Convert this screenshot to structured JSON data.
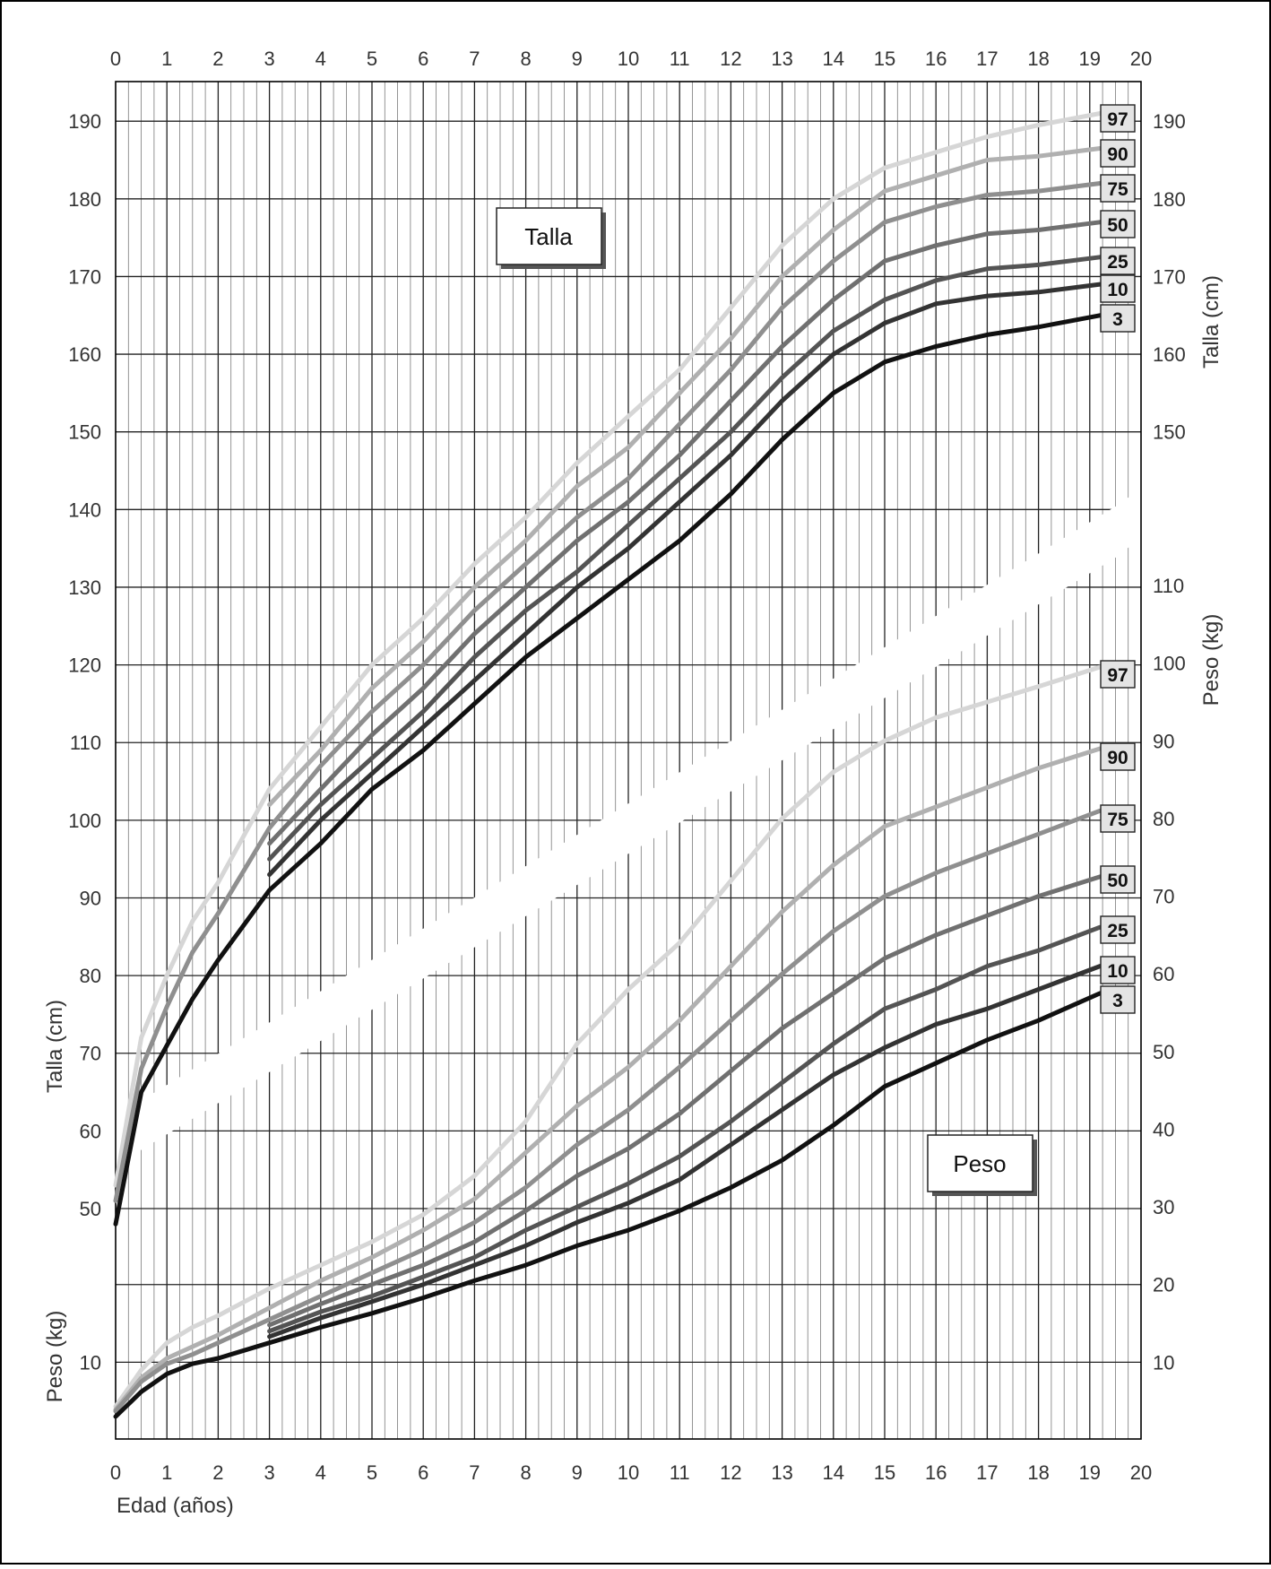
{
  "chart_data": {
    "type": "line",
    "x_label": "Edad (años)",
    "x_range": [
      0,
      20
    ],
    "x_ticks": [
      0,
      1,
      2,
      3,
      4,
      5,
      6,
      7,
      8,
      9,
      10,
      11,
      12,
      13,
      14,
      15,
      16,
      17,
      18,
      19,
      20
    ],
    "talla": {
      "panel_label": "Talla",
      "axis_label": "Talla (cm)",
      "left_ticks": [
        50,
        60,
        70,
        80,
        90,
        100,
        110,
        120,
        130,
        140,
        150,
        160,
        170,
        180,
        190
      ],
      "right_ticks": [
        150,
        160,
        170,
        180,
        190
      ],
      "series": [
        {
          "percentile": "97",
          "points": [
            [
              0,
              53
            ],
            [
              0.5,
              72
            ],
            [
              1,
              80
            ],
            [
              1.5,
              87
            ],
            [
              2,
              92
            ],
            [
              3,
              104
            ],
            [
              4,
              112
            ],
            [
              5,
              120
            ],
            [
              6,
              126
            ],
            [
              7,
              133
            ],
            [
              8,
              139
            ],
            [
              9,
              146
            ],
            [
              10,
              152
            ],
            [
              11,
              158
            ],
            [
              12,
              166
            ],
            [
              13,
              174
            ],
            [
              14,
              180
            ],
            [
              15,
              184
            ],
            [
              16,
              186
            ],
            [
              17,
              188
            ],
            [
              18,
              189.5
            ],
            [
              19.2,
              191
            ]
          ]
        },
        {
          "percentile": "90",
          "points": [
            [
              3,
              102
            ],
            [
              4,
              109
            ],
            [
              5,
              117
            ],
            [
              6,
              123
            ],
            [
              7,
              130
            ],
            [
              8,
              136
            ],
            [
              9,
              143
            ],
            [
              10,
              148
            ],
            [
              11,
              155
            ],
            [
              12,
              162
            ],
            [
              13,
              170
            ],
            [
              14,
              176
            ],
            [
              15,
              181
            ],
            [
              16,
              183
            ],
            [
              17,
              185
            ],
            [
              18,
              185.5
            ],
            [
              19.2,
              186.5
            ]
          ]
        },
        {
          "percentile": "75",
          "points": [
            [
              0,
              51
            ],
            [
              0.5,
              68
            ],
            [
              1,
              76
            ],
            [
              1.5,
              83
            ],
            [
              2,
              88
            ],
            [
              3,
              99
            ],
            [
              4,
              107
            ],
            [
              5,
              114
            ],
            [
              6,
              120
            ],
            [
              7,
              127
            ],
            [
              8,
              133
            ],
            [
              9,
              139
            ],
            [
              10,
              144
            ],
            [
              11,
              151
            ],
            [
              12,
              158
            ],
            [
              13,
              166
            ],
            [
              14,
              172
            ],
            [
              15,
              177
            ],
            [
              16,
              179
            ],
            [
              17,
              180.5
            ],
            [
              18,
              181
            ],
            [
              19.2,
              182
            ]
          ]
        },
        {
          "percentile": "50",
          "points": [
            [
              3,
              97
            ],
            [
              4,
              104
            ],
            [
              5,
              111
            ],
            [
              6,
              117
            ],
            [
              7,
              124
            ],
            [
              8,
              130
            ],
            [
              9,
              136
            ],
            [
              10,
              141
            ],
            [
              11,
              147
            ],
            [
              12,
              154
            ],
            [
              13,
              161
            ],
            [
              14,
              167
            ],
            [
              15,
              172
            ],
            [
              16,
              174
            ],
            [
              17,
              175.5
            ],
            [
              18,
              176
            ],
            [
              19.2,
              177
            ]
          ]
        },
        {
          "percentile": "25",
          "points": [
            [
              3,
              95
            ],
            [
              4,
              102
            ],
            [
              5,
              108
            ],
            [
              6,
              114
            ],
            [
              7,
              121
            ],
            [
              8,
              127
            ],
            [
              9,
              132
            ],
            [
              10,
              138
            ],
            [
              11,
              144
            ],
            [
              12,
              150
            ],
            [
              13,
              157
            ],
            [
              14,
              163
            ],
            [
              15,
              167
            ],
            [
              16,
              169.5
            ],
            [
              17,
              171
            ],
            [
              18,
              171.5
            ],
            [
              19.2,
              172.5
            ]
          ]
        },
        {
          "percentile": "10",
          "points": [
            [
              3,
              93
            ],
            [
              4,
              100
            ],
            [
              5,
              106
            ],
            [
              6,
              112
            ],
            [
              7,
              118
            ],
            [
              8,
              124
            ],
            [
              9,
              130
            ],
            [
              10,
              135
            ],
            [
              11,
              141
            ],
            [
              12,
              147
            ],
            [
              13,
              154
            ],
            [
              14,
              160
            ],
            [
              15,
              164
            ],
            [
              16,
              166.5
            ],
            [
              17,
              167.5
            ],
            [
              18,
              168
            ],
            [
              19.2,
              169
            ]
          ]
        },
        {
          "percentile": "3",
          "points": [
            [
              0,
              48
            ],
            [
              0.5,
              65
            ],
            [
              1,
              71
            ],
            [
              1.5,
              77
            ],
            [
              2,
              82
            ],
            [
              3,
              91
            ],
            [
              4,
              97
            ],
            [
              5,
              104
            ],
            [
              6,
              109
            ],
            [
              7,
              115
            ],
            [
              8,
              121
            ],
            [
              9,
              126
            ],
            [
              10,
              131
            ],
            [
              11,
              136
            ],
            [
              12,
              142
            ],
            [
              13,
              149
            ],
            [
              14,
              155
            ],
            [
              15,
              159
            ],
            [
              16,
              161
            ],
            [
              17,
              162.5
            ],
            [
              18,
              163.5
            ],
            [
              19.2,
              165
            ]
          ]
        }
      ]
    },
    "peso": {
      "panel_label": "Peso",
      "axis_label": "Peso (kg)",
      "left_ticks": [
        10
      ],
      "right_ticks": [
        10,
        20,
        30,
        40,
        50,
        60,
        70,
        80,
        90,
        100,
        110
      ],
      "series": [
        {
          "percentile": "97",
          "points": [
            [
              0,
              4.3
            ],
            [
              0.5,
              9
            ],
            [
              1,
              12.5
            ],
            [
              1.5,
              14.5
            ],
            [
              2,
              16
            ],
            [
              3,
              19.5
            ],
            [
              4,
              22.5
            ],
            [
              5,
              25.5
            ],
            [
              6,
              29
            ],
            [
              7,
              34
            ],
            [
              8,
              41
            ],
            [
              9,
              51
            ],
            [
              10,
              58
            ],
            [
              11,
              64
            ],
            [
              12,
              72
            ],
            [
              13,
              80
            ],
            [
              14,
              86
            ],
            [
              15,
              90
            ],
            [
              16,
              93
            ],
            [
              17,
              95
            ],
            [
              18,
              97
            ],
            [
              19.2,
              99.5
            ]
          ]
        },
        {
          "percentile": "90",
          "points": [
            [
              0,
              3.9
            ],
            [
              0.5,
              8
            ],
            [
              1,
              10.5
            ],
            [
              1.5,
              12
            ],
            [
              2,
              13.5
            ],
            [
              3,
              17
            ],
            [
              4,
              20.5
            ],
            [
              5,
              23.5
            ],
            [
              6,
              27
            ],
            [
              7,
              31
            ],
            [
              8,
              37
            ],
            [
              9,
              43
            ],
            [
              10,
              48
            ],
            [
              11,
              54
            ],
            [
              12,
              61
            ],
            [
              13,
              68
            ],
            [
              14,
              74
            ],
            [
              15,
              79
            ],
            [
              16,
              81.5
            ],
            [
              17,
              84
            ],
            [
              18,
              86.5
            ],
            [
              19.2,
              89
            ]
          ]
        },
        {
          "percentile": "75",
          "points": [
            [
              0,
              3.7
            ],
            [
              0.5,
              7.5
            ],
            [
              1,
              9.8
            ],
            [
              1.5,
              11
            ],
            [
              2,
              12.5
            ],
            [
              3,
              15.5
            ],
            [
              4,
              18.5
            ],
            [
              5,
              21.5
            ],
            [
              6,
              24.5
            ],
            [
              7,
              28
            ],
            [
              8,
              32.5
            ],
            [
              9,
              38
            ],
            [
              10,
              42.5
            ],
            [
              11,
              48
            ],
            [
              12,
              54
            ],
            [
              13,
              60
            ],
            [
              14,
              65.5
            ],
            [
              15,
              70
            ],
            [
              16,
              73
            ],
            [
              17,
              75.5
            ],
            [
              18,
              78
            ],
            [
              19.2,
              81
            ]
          ]
        },
        {
          "percentile": "50",
          "points": [
            [
              3,
              14.8
            ],
            [
              4,
              17.5
            ],
            [
              5,
              20
            ],
            [
              6,
              22.5
            ],
            [
              7,
              25.5
            ],
            [
              8,
              29.5
            ],
            [
              9,
              34
            ],
            [
              10,
              37.5
            ],
            [
              11,
              42
            ],
            [
              12,
              47.5
            ],
            [
              13,
              53
            ],
            [
              14,
              57.5
            ],
            [
              15,
              62
            ],
            [
              16,
              65
            ],
            [
              17,
              67.5
            ],
            [
              18,
              70
            ],
            [
              19.2,
              72.5
            ]
          ]
        },
        {
          "percentile": "25",
          "points": [
            [
              3,
              14
            ],
            [
              4,
              16.5
            ],
            [
              5,
              18.5
            ],
            [
              6,
              21
            ],
            [
              7,
              23.5
            ],
            [
              8,
              27
            ],
            [
              9,
              30
            ],
            [
              10,
              33
            ],
            [
              11,
              36.5
            ],
            [
              12,
              41
            ],
            [
              13,
              46
            ],
            [
              14,
              51
            ],
            [
              15,
              55.5
            ],
            [
              16,
              58
            ],
            [
              17,
              61
            ],
            [
              18,
              63
            ],
            [
              19.2,
              66
            ]
          ]
        },
        {
          "percentile": "10",
          "points": [
            [
              3,
              13.3
            ],
            [
              4,
              15.7
            ],
            [
              5,
              17.8
            ],
            [
              6,
              20
            ],
            [
              7,
              22.5
            ],
            [
              8,
              25
            ],
            [
              9,
              28
            ],
            [
              10,
              30.5
            ],
            [
              11,
              33.5
            ],
            [
              12,
              38
            ],
            [
              13,
              42.5
            ],
            [
              14,
              47
            ],
            [
              15,
              50.5
            ],
            [
              16,
              53.5
            ],
            [
              17,
              55.5
            ],
            [
              18,
              58
            ],
            [
              19.2,
              61
            ]
          ]
        },
        {
          "percentile": "3",
          "points": [
            [
              0,
              3
            ],
            [
              0.5,
              6.2
            ],
            [
              1,
              8.5
            ],
            [
              1.5,
              9.8
            ],
            [
              2,
              10.5
            ],
            [
              3,
              12.5
            ],
            [
              4,
              14.5
            ],
            [
              5,
              16.3
            ],
            [
              6,
              18.3
            ],
            [
              7,
              20.5
            ],
            [
              8,
              22.5
            ],
            [
              9,
              25
            ],
            [
              10,
              27
            ],
            [
              11,
              29.5
            ],
            [
              12,
              32.5
            ],
            [
              13,
              36
            ],
            [
              14,
              40.5
            ],
            [
              15,
              45.5
            ],
            [
              16,
              48.5
            ],
            [
              17,
              51.5
            ],
            [
              18,
              54
            ],
            [
              19.2,
              57.5
            ]
          ]
        }
      ]
    }
  }
}
